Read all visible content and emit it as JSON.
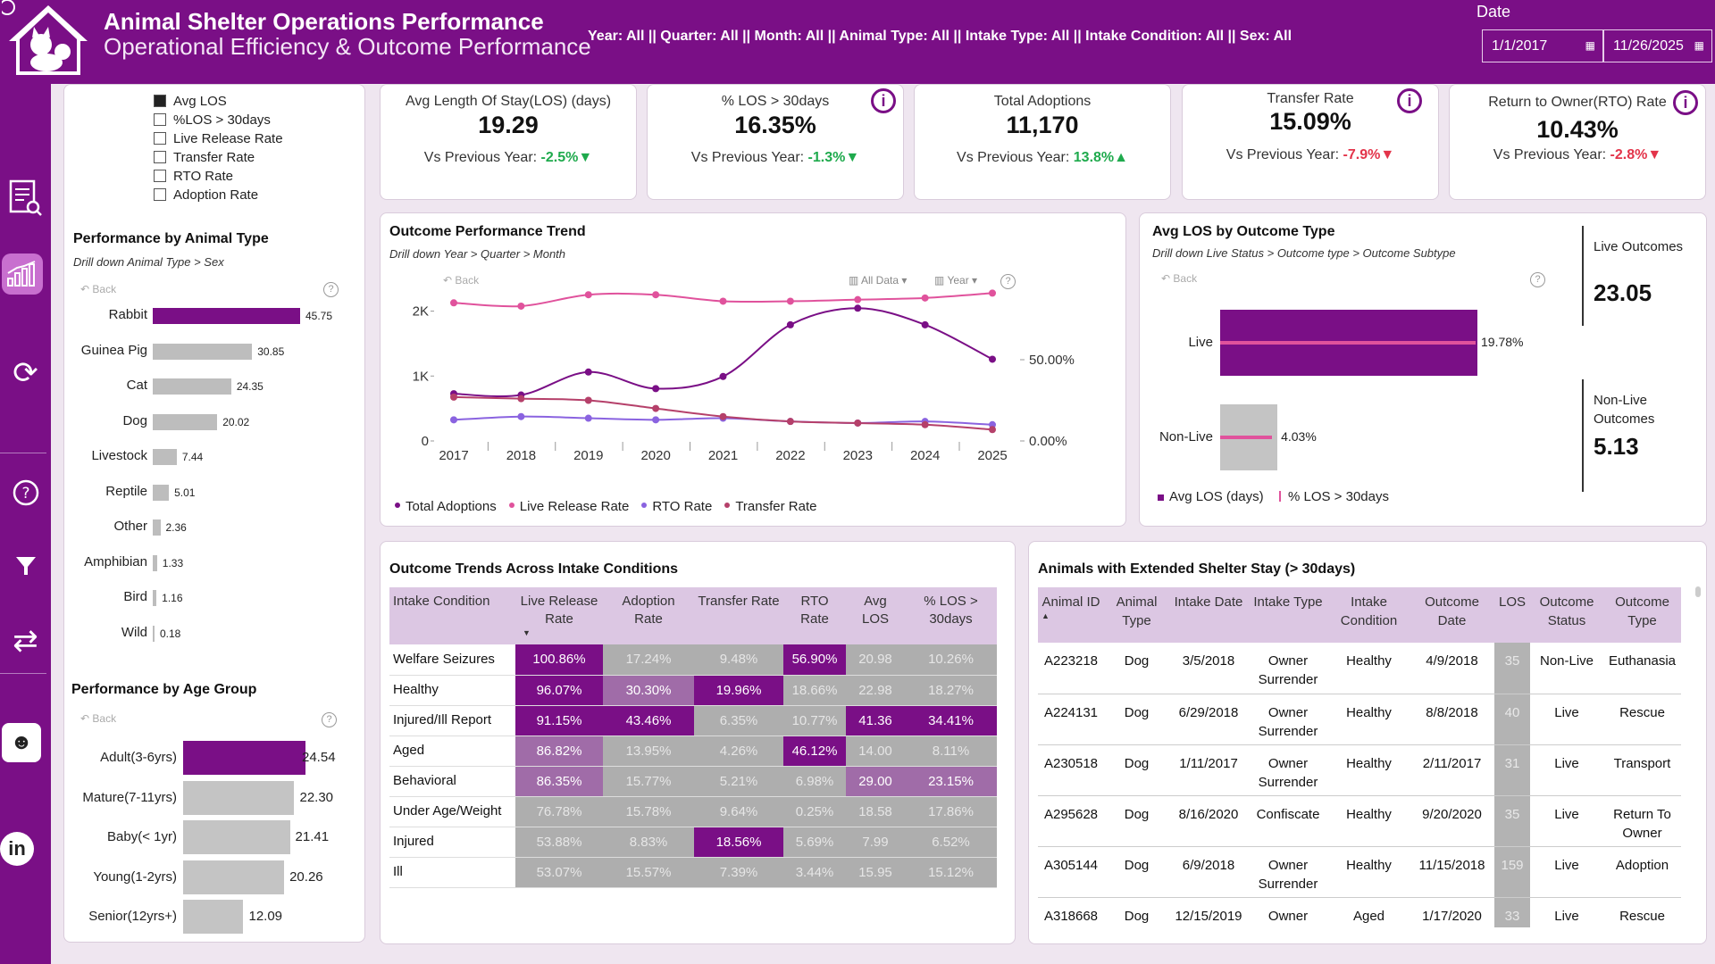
{
  "header": {
    "title": "Animal Shelter Operations Performance",
    "subtitle": "Operational Efficiency & Outcome Performance",
    "filters": "Year: All || Quarter: All || Month: All || Animal Type: All || Intake Type: All || Intake Condition: All || Sex: All",
    "date_label": "Date",
    "date_from": "1/1/2017",
    "date_to": "11/26/2025"
  },
  "metric_selector": [
    {
      "label": "Avg LOS",
      "checked": true
    },
    {
      "label": "%LOS > 30days",
      "checked": false
    },
    {
      "label": "Live Release Rate",
      "checked": false
    },
    {
      "label": "Transfer Rate",
      "checked": false
    },
    {
      "label": "RTO Rate",
      "checked": false
    },
    {
      "label": "Adoption Rate",
      "checked": false
    }
  ],
  "kpis": [
    {
      "title": "Avg Length Of Stay(LOS) (days)",
      "value": "19.29",
      "cmp_label": "Vs Previous Year: ",
      "delta": "-2.5%▼",
      "trend": "good"
    },
    {
      "title": "% LOS > 30days",
      "value": "16.35%",
      "cmp_label": "Vs Previous Year: ",
      "delta": "-1.3%▼",
      "trend": "good"
    },
    {
      "title": "Total Adoptions",
      "value": "11,170",
      "cmp_label": "Vs Previous Year: ",
      "delta": "13.8%▲",
      "trend": "good"
    },
    {
      "title": "Transfer Rate",
      "value": "15.09%",
      "cmp_label": "Vs Previous Year: ",
      "delta": "-7.9%▼",
      "trend": "bad"
    },
    {
      "title": "Return to Owner(RTO) Rate",
      "value": "10.43%",
      "cmp_label": "Vs Previous Year: ",
      "delta": "-2.8%▼",
      "trend": "bad"
    }
  ],
  "animal_type": {
    "title": "Performance by Animal Type",
    "subtitle": "Drill down Animal Type > Sex",
    "back": "Back",
    "chart_data": {
      "type": "bar",
      "categories": [
        "Rabbit",
        "Guinea Pig",
        "Cat",
        "Dog",
        "Livestock",
        "Reptile",
        "Other",
        "Amphibian",
        "Bird",
        "Wild"
      ],
      "values": [
        45.75,
        30.85,
        24.35,
        20.02,
        7.44,
        5.01,
        2.36,
        1.33,
        1.16,
        0.18
      ],
      "labels": [
        "45.75",
        "30.85",
        "24.35",
        "20.02",
        "7.44",
        "5.01",
        "2.36",
        "1.33",
        "1.16",
        "0.18"
      ]
    }
  },
  "age_group": {
    "title": "Performance by Age Group",
    "back": "Back",
    "chart_data": {
      "type": "bar",
      "categories": [
        "Adult(3-6yrs)",
        "Mature(7-11yrs)",
        "Baby(< 1yr)",
        "Young(1-2yrs)",
        "Senior(12yrs+)"
      ],
      "values": [
        24.54,
        22.3,
        21.41,
        20.26,
        12.09
      ],
      "labels": [
        "24.54",
        "22.30",
        "21.41",
        "20.26",
        "12.09"
      ]
    }
  },
  "trend": {
    "title": "Outcome Performance Trend",
    "subtitle": "Drill down Year > Quarter > Month",
    "back": "Back",
    "all_data": "All Data",
    "year_btn": "Year",
    "left_ticks": [
      "2K",
      "1K",
      "0"
    ],
    "right_ticks": [
      "50.00%",
      "0.00%"
    ],
    "chart_data": {
      "type": "line",
      "x": [
        "2017",
        "2018",
        "2019",
        "2020",
        "2021",
        "2022",
        "2023",
        "2024",
        "2025"
      ],
      "yleft_lim": [
        0,
        2200
      ],
      "yright_lim": [
        -0.1,
        1.0
      ],
      "series": [
        {
          "name": "Total Adoptions",
          "axis": "left",
          "color": "#7a0f86",
          "values": [
            740,
            720,
            1080,
            820,
            1010,
            1820,
            2080,
            1820,
            1280
          ]
        },
        {
          "name": "Live Release Rate",
          "axis": "right",
          "color": "#e0529c",
          "values": [
            0.85,
            0.83,
            0.9,
            0.9,
            0.86,
            0.86,
            0.87,
            0.88,
            0.91
          ]
        },
        {
          "name": "RTO Rate",
          "axis": "right",
          "color": "#8a63e0",
          "values": [
            0.13,
            0.15,
            0.14,
            0.13,
            0.14,
            0.12,
            0.11,
            0.12,
            0.1
          ]
        },
        {
          "name": "Transfer Rate",
          "axis": "right",
          "color": "#b5406a",
          "values": [
            0.27,
            0.26,
            0.25,
            0.2,
            0.15,
            0.12,
            0.11,
            0.1,
            0.07
          ]
        }
      ]
    }
  },
  "los_outcome": {
    "title": "Avg LOS by Outcome Type",
    "subtitle": "Drill down Live Status > Outcome type > Outcome Subtype",
    "back": "Back",
    "chart_data": {
      "type": "bar",
      "categories": [
        "Live",
        "Non-Live"
      ],
      "series": [
        {
          "name": "Avg LOS (days)",
          "values": [
            23.05,
            5.13
          ]
        },
        {
          "name": "% LOS > 30days",
          "values": [
            19.78,
            4.03
          ]
        }
      ],
      "labels": [
        "19.78%",
        "4.03%"
      ]
    },
    "legend": [
      "Avg LOS (days)",
      "% LOS > 30days"
    ],
    "live_label": "Live Outcomes",
    "live_value": "23.05",
    "nonlive_label": "Non-Live Outcomes",
    "nonlive_value": "5.13"
  },
  "intake_table": {
    "title": "Outcome Trends Across Intake Conditions",
    "headers": [
      "Intake Condition",
      "Live Release Rate",
      "Adoption Rate",
      "Transfer Rate",
      "RTO Rate",
      "Avg LOS",
      "% LOS > 30days"
    ],
    "rows": [
      {
        "c": [
          "Welfare Seizures",
          "100.86%",
          "17.24%",
          "9.48%",
          "56.90%",
          "20.98",
          "10.26%"
        ],
        "s": [
          "p",
          "g",
          "g",
          "p",
          "g",
          "g"
        ]
      },
      {
        "c": [
          "Healthy",
          "96.07%",
          "30.30%",
          "19.96%",
          "18.66%",
          "22.98",
          "18.27%"
        ],
        "s": [
          "p",
          "m",
          "p",
          "g",
          "g",
          "g"
        ]
      },
      {
        "c": [
          "Injured/Ill Report",
          "91.15%",
          "43.46%",
          "6.35%",
          "10.77%",
          "41.36",
          "34.41%"
        ],
        "s": [
          "p",
          "p",
          "g",
          "g",
          "p",
          "p"
        ]
      },
      {
        "c": [
          "Aged",
          "86.82%",
          "13.95%",
          "4.26%",
          "46.12%",
          "14.00",
          "8.11%"
        ],
        "s": [
          "m",
          "g",
          "g",
          "p",
          "g",
          "g"
        ]
      },
      {
        "c": [
          "Behavioral",
          "86.35%",
          "15.77%",
          "5.21%",
          "6.98%",
          "29.00",
          "23.15%"
        ],
        "s": [
          "m",
          "g",
          "g",
          "g",
          "m",
          "m"
        ]
      },
      {
        "c": [
          "Under Age/Weight",
          "76.78%",
          "15.78%",
          "9.64%",
          "0.25%",
          "18.58",
          "17.86%"
        ],
        "s": [
          "g",
          "g",
          "g",
          "g",
          "g",
          "g"
        ]
      },
      {
        "c": [
          "Injured",
          "53.88%",
          "8.83%",
          "18.56%",
          "5.69%",
          "7.99",
          "6.52%"
        ],
        "s": [
          "g",
          "g",
          "p",
          "g",
          "g",
          "g"
        ]
      },
      {
        "c": [
          "Ill",
          "53.07%",
          "15.57%",
          "7.39%",
          "3.44%",
          "15.95",
          "15.12%"
        ],
        "s": [
          "g",
          "g",
          "g",
          "g",
          "g",
          "g"
        ]
      }
    ]
  },
  "extended_table": {
    "title": "Animals with Extended Shelter Stay (> 30days)",
    "headers": [
      "Animal ID",
      "Animal Type",
      "Intake Date",
      "Intake Type",
      "Intake Condition",
      "Outcome Date",
      "LOS",
      "Outcome Status",
      "Outcome Type"
    ],
    "rows": [
      [
        "A223218",
        "Dog",
        "3/5/2018",
        "Owner Surrender",
        "Healthy",
        "4/9/2018",
        "35",
        "Non-Live",
        "Euthanasia"
      ],
      [
        "A224131",
        "Dog",
        "6/29/2018",
        "Owner Surrender",
        "Healthy",
        "8/8/2018",
        "40",
        "Live",
        "Rescue"
      ],
      [
        "A230518",
        "Dog",
        "1/11/2017",
        "Owner Surrender",
        "Healthy",
        "2/11/2017",
        "31",
        "Live",
        "Transport"
      ],
      [
        "A295628",
        "Dog",
        "8/16/2020",
        "Confiscate",
        "Healthy",
        "9/20/2020",
        "35",
        "Live",
        "Return To Owner"
      ],
      [
        "A305144",
        "Dog",
        "6/9/2018",
        "Owner Surrender",
        "Healthy",
        "11/15/2018",
        "159",
        "Live",
        "Adoption"
      ],
      [
        "A318668",
        "Dog",
        "12/15/2019",
        "Owner",
        "Aged",
        "1/17/2020",
        "33",
        "Live",
        "Rescue"
      ]
    ]
  }
}
